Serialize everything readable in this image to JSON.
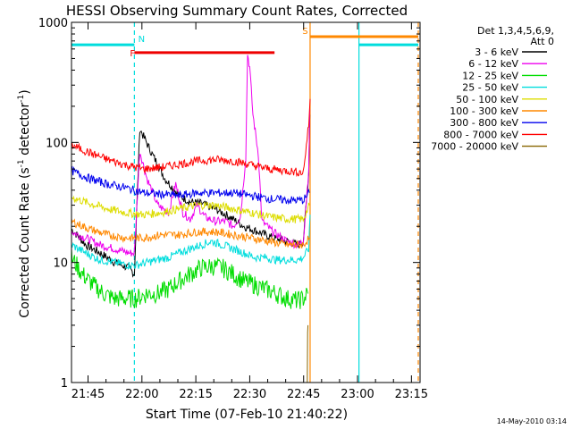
{
  "chart_data": {
    "type": "line",
    "title": "HESSI Observing Summary Count Rates, Corrected",
    "xlabel": "Start Time (07-Feb-10 21:40:22)",
    "ylabel": "Corrected Count Rate (s",
    "ylabel_sup1": "-1",
    "ylabel_mid": " detector",
    "ylabel_sup2": "-1",
    "ylabel_end": ")",
    "x_unit": "minutes since 21:40:22",
    "xlim": [
      0,
      97
    ],
    "ylim": [
      1,
      1000
    ],
    "y_scale": "log",
    "x_ticks": [
      {
        "t": 4.6,
        "label": "21:45"
      },
      {
        "t": 19.6,
        "label": "22:00"
      },
      {
        "t": 34.6,
        "label": "22:15"
      },
      {
        "t": 49.6,
        "label": "22:30"
      },
      {
        "t": 64.6,
        "label": "22:45"
      },
      {
        "t": 79.6,
        "label": "23:00"
      },
      {
        "t": 94.6,
        "label": "23:15"
      }
    ],
    "y_ticks": [
      {
        "v": 1,
        "label": "1"
      },
      {
        "v": 10,
        "label": "10"
      },
      {
        "v": 100,
        "label": "100"
      },
      {
        "v": 1000,
        "label": "1000"
      }
    ],
    "legend": {
      "placement": "right",
      "header1": "Det 1,3,4,5,6,9,",
      "header2": "Att 0"
    },
    "flags": [
      {
        "label": "N",
        "color": "#00dddd",
        "x": [
          0,
          17.5
        ],
        "level": 650,
        "label_at": 17.8
      },
      {
        "label": "F",
        "color": "#ee0000",
        "x": [
          17.5,
          56.5
        ],
        "level": 560,
        "label_at": 15.5
      },
      {
        "label": "S",
        "color": "#ff8800",
        "x": [
          66.5,
          96.5
        ],
        "level": 760,
        "label_at": 63.5
      },
      {
        "label": "",
        "color": "#00dddd",
        "x": [
          80.0,
          96.5
        ],
        "level": 650,
        "label_at": 0
      }
    ],
    "vlines": [
      {
        "t": 17.5,
        "color": "#00dddd",
        "dashed": true
      },
      {
        "t": 66.4,
        "color": "#ff8800",
        "dashed": false
      },
      {
        "t": 80.0,
        "color": "#00dddd",
        "dashed": false
      },
      {
        "t": 96.5,
        "color": "#ff8800",
        "dashed": true
      }
    ],
    "series": [
      {
        "name": "3 - 6 keV",
        "color": "#000000",
        "points": [
          [
            0,
            19
          ],
          [
            4,
            14
          ],
          [
            8,
            12
          ],
          [
            12,
            10
          ],
          [
            16,
            9
          ],
          [
            17.5,
            8
          ],
          [
            19,
            130
          ],
          [
            22,
            85
          ],
          [
            26,
            50
          ],
          [
            30,
            36
          ],
          [
            33,
            32
          ],
          [
            36,
            31
          ],
          [
            40,
            28
          ],
          [
            44,
            24
          ],
          [
            48,
            20
          ],
          [
            52,
            18
          ],
          [
            56,
            16
          ],
          [
            60,
            15
          ],
          [
            63,
            14
          ],
          [
            64.5,
            15
          ],
          [
            66,
            55
          ],
          [
            66.3,
            170
          ]
        ]
      },
      {
        "name": "6 - 12 keV",
        "color": "#ee00ee",
        "points": [
          [
            0,
            18
          ],
          [
            4,
            16
          ],
          [
            8,
            14
          ],
          [
            12,
            13
          ],
          [
            16,
            12
          ],
          [
            17.5,
            12
          ],
          [
            19,
            85
          ],
          [
            21,
            50
          ],
          [
            24,
            30
          ],
          [
            27,
            26
          ],
          [
            29,
            45
          ],
          [
            31,
            26
          ],
          [
            33,
            23
          ],
          [
            35,
            30
          ],
          [
            37,
            24
          ],
          [
            40,
            22
          ],
          [
            43,
            22
          ],
          [
            45,
            20
          ],
          [
            47,
            24
          ],
          [
            48.5,
            75
          ],
          [
            49,
            550
          ],
          [
            49.6,
            420
          ],
          [
            50.5,
            170
          ],
          [
            52,
            80
          ],
          [
            53,
            22
          ],
          [
            56,
            18
          ],
          [
            60,
            15
          ],
          [
            63,
            14
          ],
          [
            64.5,
            15
          ],
          [
            66,
            60
          ],
          [
            66.3,
            190
          ]
        ]
      },
      {
        "name": "12 - 25 keV",
        "color": "#00dd00",
        "points": [
          [
            0,
            11
          ],
          [
            3,
            8
          ],
          [
            6,
            6.5
          ],
          [
            9,
            5.5
          ],
          [
            12,
            5
          ],
          [
            15,
            5
          ],
          [
            18,
            5
          ],
          [
            21,
            5.5
          ],
          [
            24,
            5.5
          ],
          [
            27,
            6
          ],
          [
            30,
            7
          ],
          [
            33,
            8
          ],
          [
            36,
            9
          ],
          [
            39,
            9.3
          ],
          [
            42,
            9
          ],
          [
            45,
            8
          ],
          [
            48,
            7
          ],
          [
            51,
            6.5
          ],
          [
            54,
            6
          ],
          [
            57,
            5.5
          ],
          [
            60,
            5
          ],
          [
            63,
            4.8
          ],
          [
            64.5,
            5
          ],
          [
            65.8,
            5.5
          ]
        ]
      },
      {
        "name": "25 - 50 keV",
        "color": "#00dddd",
        "points": [
          [
            0,
            14
          ],
          [
            4,
            12
          ],
          [
            8,
            10.5
          ],
          [
            12,
            10
          ],
          [
            16,
            9.5
          ],
          [
            18,
            9.5
          ],
          [
            21,
            10
          ],
          [
            24,
            10.5
          ],
          [
            27,
            11
          ],
          [
            30,
            12
          ],
          [
            33,
            13
          ],
          [
            36,
            14
          ],
          [
            39,
            15
          ],
          [
            42,
            14
          ],
          [
            45,
            13
          ],
          [
            48,
            12
          ],
          [
            51,
            11
          ],
          [
            54,
            11
          ],
          [
            57,
            10.5
          ],
          [
            60,
            10.5
          ],
          [
            63,
            10.5
          ],
          [
            64.5,
            11
          ],
          [
            66,
            13
          ],
          [
            66.4,
            25
          ]
        ]
      },
      {
        "name": "50 - 100 keV",
        "color": "#dddd00",
        "points": [
          [
            0,
            35
          ],
          [
            5,
            31
          ],
          [
            10,
            28
          ],
          [
            15,
            26
          ],
          [
            20,
            25
          ],
          [
            25,
            26
          ],
          [
            30,
            28
          ],
          [
            35,
            30
          ],
          [
            40,
            30
          ],
          [
            45,
            28
          ],
          [
            50,
            26
          ],
          [
            55,
            24
          ],
          [
            60,
            23
          ],
          [
            64.5,
            23
          ],
          [
            66.2,
            30
          ]
        ]
      },
      {
        "name": "100 - 300 keV",
        "color": "#ff8800",
        "points": [
          [
            0,
            22
          ],
          [
            5,
            19
          ],
          [
            10,
            17
          ],
          [
            15,
            16
          ],
          [
            20,
            16
          ],
          [
            25,
            17
          ],
          [
            30,
            17
          ],
          [
            35,
            18
          ],
          [
            40,
            18
          ],
          [
            45,
            17
          ],
          [
            50,
            16
          ],
          [
            55,
            15
          ],
          [
            60,
            14
          ],
          [
            64.5,
            14
          ],
          [
            66.2,
            16
          ]
        ]
      },
      {
        "name": "300 - 800 keV",
        "color": "#0000ee",
        "points": [
          [
            0,
            58
          ],
          [
            5,
            50
          ],
          [
            10,
            45
          ],
          [
            15,
            42
          ],
          [
            20,
            38
          ],
          [
            25,
            37
          ],
          [
            30,
            36
          ],
          [
            35,
            38
          ],
          [
            40,
            38
          ],
          [
            45,
            38
          ],
          [
            50,
            36
          ],
          [
            55,
            34
          ],
          [
            60,
            33
          ],
          [
            64.5,
            33
          ],
          [
            66.2,
            38
          ]
        ]
      },
      {
        "name": "800 - 7000 keV",
        "color": "#ff0000",
        "points": [
          [
            0,
            95
          ],
          [
            5,
            82
          ],
          [
            10,
            72
          ],
          [
            15,
            65
          ],
          [
            20,
            60
          ],
          [
            25,
            62
          ],
          [
            30,
            66
          ],
          [
            35,
            70
          ],
          [
            40,
            72
          ],
          [
            45,
            70
          ],
          [
            50,
            65
          ],
          [
            55,
            60
          ],
          [
            60,
            58
          ],
          [
            64.5,
            56
          ],
          [
            66,
            140
          ],
          [
            66.4,
            230
          ]
        ]
      },
      {
        "name": "7000 - 20000 keV",
        "color": "#886600",
        "points": [
          [
            65.6,
            1
          ],
          [
            65.7,
            2.5
          ],
          [
            65.8,
            3
          ]
        ]
      }
    ]
  },
  "footer": {
    "date_stamp": "14-May-2010 03:14"
  }
}
